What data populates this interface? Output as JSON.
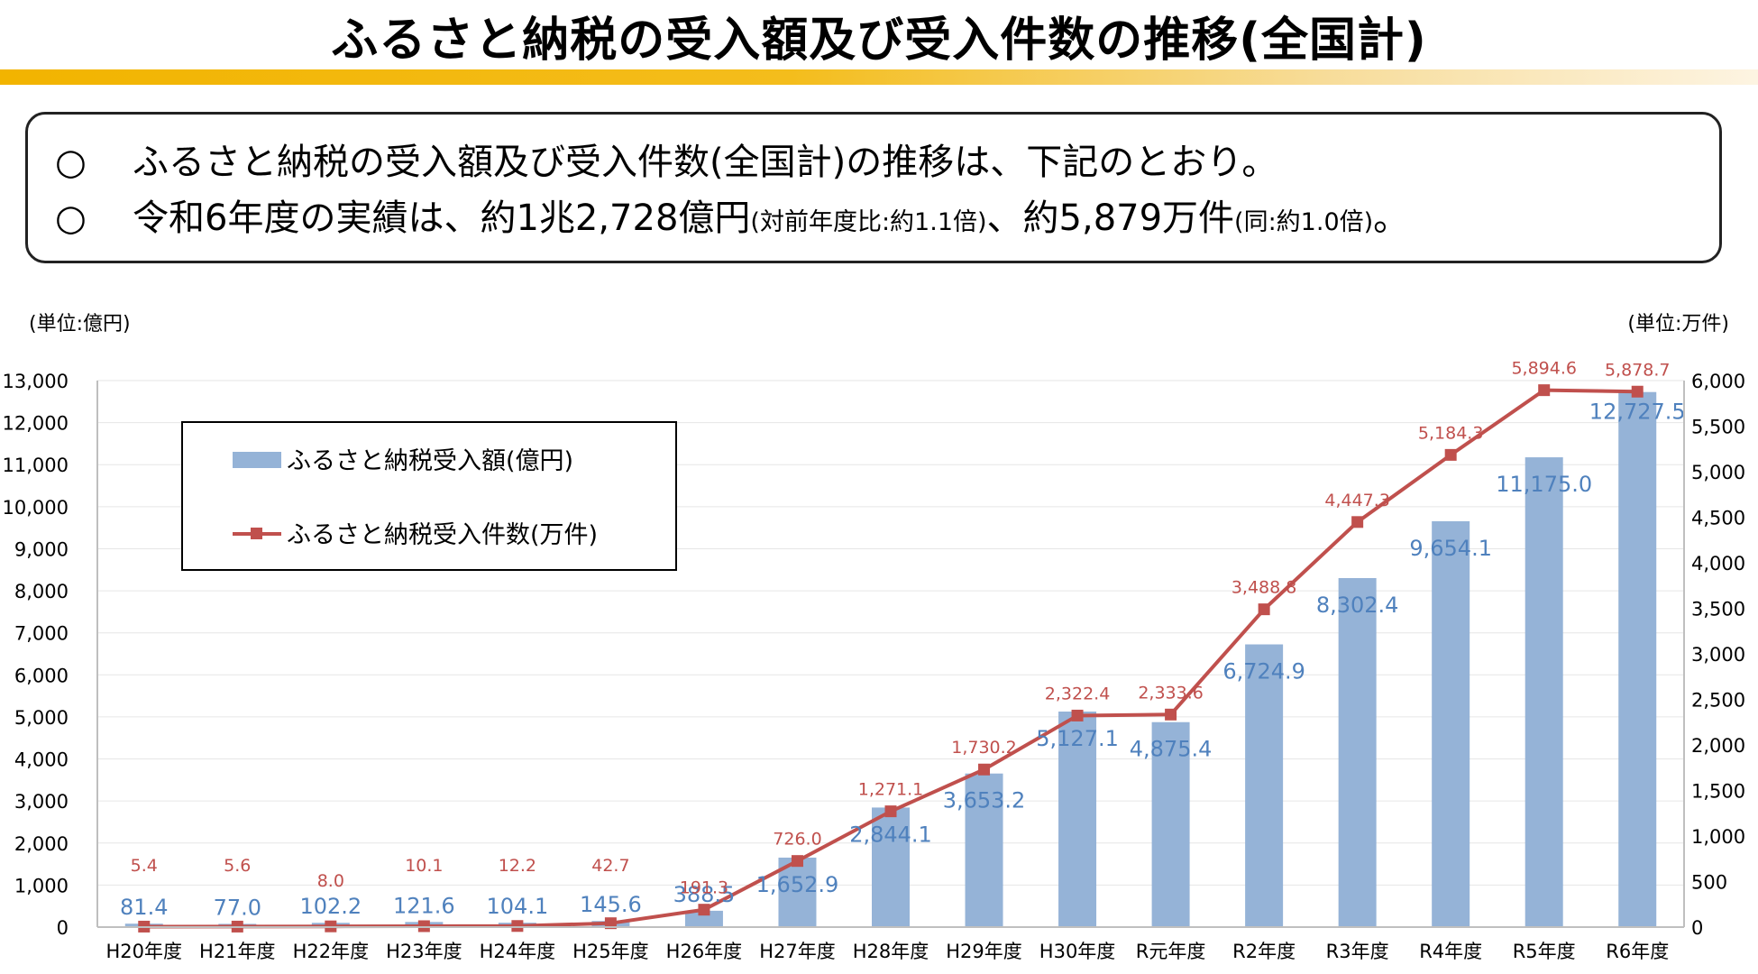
{
  "header": {
    "title": "ふるさと納税の受入額及び受入件数の推移(全国計)"
  },
  "summary": {
    "lines": [
      {
        "bullet": "○",
        "text": "ふるさと納税の受入額及び受入件数(全国計)の推移は、下記のとおり。"
      },
      {
        "bullet": "○",
        "text_main": "令和6年度の実績は、約1兆2,728億円",
        "text_paren1": "(対前年度比:約1.1倍)",
        "text_mid": "、約5,879万件",
        "text_paren2": "(同:約1.0倍)",
        "text_end": "。"
      }
    ]
  },
  "chart_data": {
    "type": "bar+line",
    "left_unit": "(単位:億円)",
    "right_unit": "(単位:万件)",
    "categories": [
      "H20年度",
      "H21年度",
      "H22年度",
      "H23年度",
      "H24年度",
      "H25年度",
      "H26年度",
      "H27年度",
      "H28年度",
      "H29年度",
      "H30年度",
      "R元年度",
      "R2年度",
      "R3年度",
      "R4年度",
      "R5年度",
      "R6年度"
    ],
    "series": [
      {
        "name": "ふるさと納税受入額(億円)",
        "type": "bar",
        "axis": "left",
        "color": "#95b3d7",
        "label_color": "#4f81bd",
        "values": [
          81.4,
          77.0,
          102.2,
          121.6,
          104.1,
          145.6,
          388.5,
          1652.9,
          2844.1,
          3653.2,
          5127.1,
          4875.4,
          6724.9,
          8302.4,
          9654.1,
          11175.0,
          12727.5
        ],
        "labels": [
          "81.4",
          "77.0",
          "102.2",
          "121.6",
          "104.1",
          "145.6",
          "388.5",
          "1,652.9",
          "2,844.1",
          "3,653.2",
          "5,127.1",
          "4,875.4",
          "6,724.9",
          "8,302.4",
          "9,654.1",
          "11,175.0",
          "12,727.5"
        ]
      },
      {
        "name": "ふるさと納税受入件数(万件)",
        "type": "line",
        "axis": "right",
        "color": "#c0504d",
        "values": [
          5.4,
          5.6,
          8.0,
          10.1,
          12.2,
          42.7,
          191.3,
          726.0,
          1271.1,
          1730.2,
          2322.4,
          2333.6,
          3488.8,
          4447.3,
          5184.3,
          5894.6,
          5878.7
        ],
        "labels": [
          "5.4",
          "5.6",
          "8.0",
          "10.1",
          "12.2",
          "42.7",
          "191.3",
          "726.0",
          "1,271.1",
          "1,730.2",
          "2,322.4",
          "2,333.6",
          "3,488.8",
          "4,447.3",
          "5,184.3",
          "5,894.6",
          "5,878.7"
        ]
      }
    ],
    "y_left": {
      "min": 0,
      "max": 13000,
      "step": 1000,
      "tick_labels": [
        "0",
        "1,000",
        "2,000",
        "3,000",
        "4,000",
        "5,000",
        "6,000",
        "7,000",
        "8,000",
        "9,000",
        "10,000",
        "11,000",
        "12,000",
        "13,000"
      ]
    },
    "y_right": {
      "min": 0,
      "max": 6000,
      "step": 500,
      "tick_labels": [
        "0",
        "500",
        "1,000",
        "1,500",
        "2,000",
        "2,500",
        "3,000",
        "3,500",
        "4,000",
        "4,500",
        "5,000",
        "5,500",
        "6,000"
      ]
    },
    "grid": true,
    "legend": "top-left"
  }
}
